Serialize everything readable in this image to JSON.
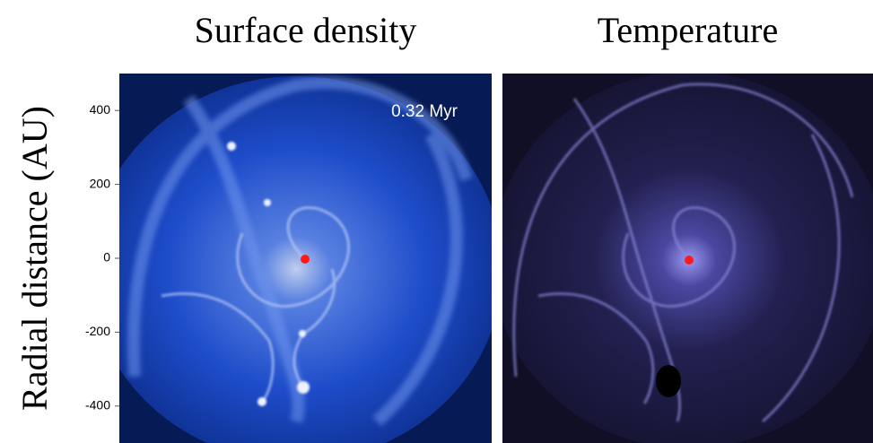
{
  "chart_data": [
    {
      "type": "image",
      "title": "Surface density",
      "ylabel": "Radial distance (AU)",
      "ylim": [
        -500,
        500
      ],
      "yticks": [
        400,
        200,
        0,
        -200,
        -400
      ],
      "annotation": "0.32 Myr"
    },
    {
      "type": "image",
      "title": "Temperature"
    }
  ]
}
